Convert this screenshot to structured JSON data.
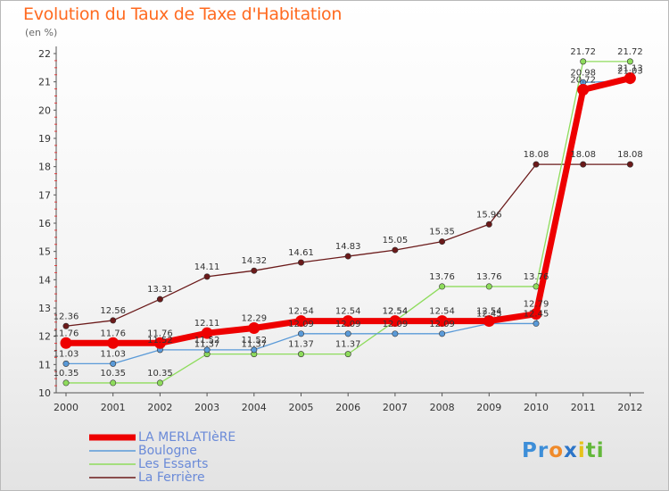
{
  "title": "Evolution du Taux de Taxe d'Habitation",
  "unit": "(en %)",
  "logo": {
    "letters": [
      {
        "ch": "P",
        "color": "#3d8ed8"
      },
      {
        "ch": "r",
        "color": "#3d8ed8"
      },
      {
        "ch": "o",
        "color": "#f08a2a"
      },
      {
        "ch": "x",
        "color": "#2c75c8"
      },
      {
        "ch": "i",
        "color": "#e6c21c"
      },
      {
        "ch": "t",
        "color": "#63b83a"
      },
      {
        "ch": "i",
        "color": "#63b83a"
      }
    ]
  },
  "chart_data": {
    "type": "line",
    "x": [
      "2000",
      "2001",
      "2002",
      "2003",
      "2004",
      "2005",
      "2006",
      "2007",
      "2008",
      "2009",
      "2010",
      "2011",
      "2012"
    ],
    "ylim": [
      10,
      22
    ],
    "yticks": [
      "10",
      "11",
      "12",
      "13",
      "14",
      "15",
      "16",
      "17",
      "18",
      "19",
      "20",
      "21",
      "22"
    ],
    "grid": false,
    "legend": "bottom-left",
    "series": [
      {
        "name": "La Ferrière",
        "color": "#6b1a1a",
        "values": [
          12.36,
          12.56,
          13.31,
          14.11,
          14.32,
          14.61,
          14.83,
          15.05,
          15.35,
          15.96,
          18.08,
          18.08,
          18.08
        ],
        "labels": [
          "12.36",
          "12.56",
          "13.31",
          "14.11",
          "14.32",
          "14.61",
          "14.83",
          "15.05",
          "15.35",
          "15.96",
          "18.08",
          "18.08",
          "18.08"
        ]
      },
      {
        "name": "Les Essarts",
        "color": "#8edc5c",
        "values": [
          10.35,
          10.35,
          10.35,
          11.37,
          11.37,
          11.37,
          11.37,
          12.54,
          13.76,
          13.76,
          13.76,
          21.72,
          21.72
        ],
        "labels": [
          "10.35",
          "10.35",
          "10.35",
          "11.37",
          "11.37",
          "11.37",
          "11.37",
          "12.54",
          "13.76",
          "13.76",
          "13.76",
          "21.72",
          "21.72"
        ]
      },
      {
        "name": "Boulogne",
        "color": "#5a9ad8",
        "values": [
          11.03,
          11.03,
          11.52,
          11.52,
          11.52,
          12.09,
          12.09,
          12.09,
          12.09,
          12.45,
          12.45,
          20.98,
          21.03
        ],
        "labels": [
          "11.03",
          "11.03",
          "11.52",
          "11.52",
          "11.52",
          "12.09",
          "12.09",
          "12.09",
          "12.09",
          "12.45",
          "12.45",
          "20.98",
          "21.03"
        ]
      },
      {
        "name": "LA MERLATIèRE",
        "color": "#ee0000",
        "values": [
          11.76,
          11.76,
          11.76,
          12.11,
          12.29,
          12.54,
          12.54,
          12.54,
          12.54,
          12.54,
          12.79,
          20.72,
          21.13
        ],
        "labels": [
          "11.76",
          "11.76",
          "11.76",
          "12.11",
          "12.29",
          "12.54",
          "12.54",
          "12.54",
          "12.54",
          "12.54",
          "12.79",
          "20.72",
          "21.13"
        ]
      }
    ]
  },
  "legend_items": [
    "LA MERLATIèRE",
    "Boulogne",
    "Les Essarts",
    "La Ferrière"
  ]
}
